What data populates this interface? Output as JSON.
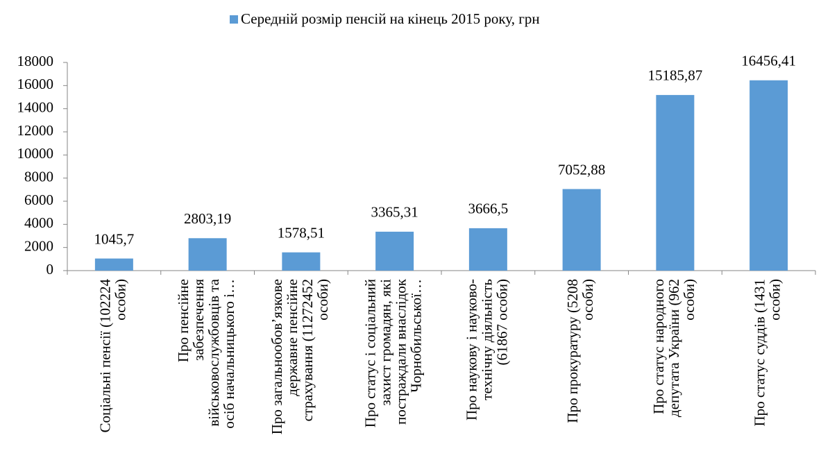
{
  "chart_data": {
    "type": "bar",
    "categories": [
      "Соціальні пенсії (102224\nособи)",
      "Про пенсійне\nзабезпечення\nвійськовослужбовців та\nосіб начальницького і…",
      "Про загальнообов’язкове\nдержавне пенсійне\nстрахування (11272452\nособи)",
      "Про статус і соціальний\nзахист громадян, які\nпостраждали внаслідок\nЧорнобильської…",
      "Про наукову і науково-\nтехнічну діяльність\n(61867 особи)",
      "Про прокуратуру (5208\nособи)",
      "Про статус народного\nдепутата України (962\nособи)",
      "Про статус суддів (1431\nособи)"
    ],
    "series": [
      {
        "name": "Середній розмір пенсій на кінець 2015 року, грн",
        "color": "#5b9bd5",
        "values": [
          1045.7,
          2803.19,
          1578.51,
          3365.31,
          3666.5,
          7052.88,
          15185.87,
          16456.41
        ],
        "value_labels": [
          "1045,7",
          "2803,19",
          "1578,51",
          "3365,31",
          "3666,5",
          "7052,88",
          "15185,87",
          "16456,41"
        ]
      }
    ],
    "ylim": [
      0,
      18000
    ],
    "yticks": [
      0,
      2000,
      4000,
      6000,
      8000,
      10000,
      12000,
      14000,
      16000,
      18000
    ],
    "legend": "top",
    "grid": false
  }
}
